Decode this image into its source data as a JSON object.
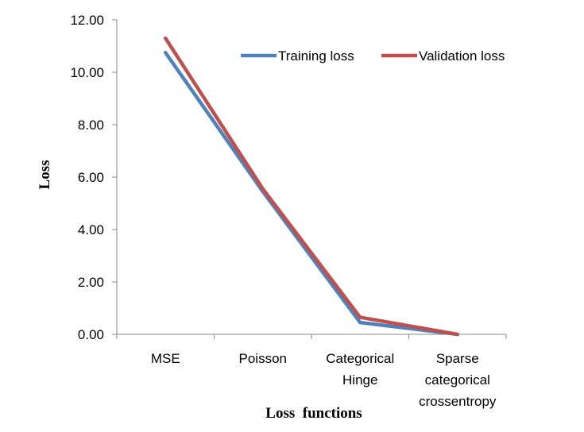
{
  "chart_data": {
    "type": "line",
    "title": "",
    "xlabel": "Loss  functions",
    "ylabel": "Loss",
    "categories": [
      [
        "MSE"
      ],
      [
        "Poisson"
      ],
      [
        "Categorical",
        "Hinge"
      ],
      [
        "Sparse",
        "categorical",
        "crossentropy"
      ]
    ],
    "ylim": [
      0,
      12
    ],
    "yticks": [
      "0.00",
      "2.00",
      "4.00",
      "6.00",
      "8.00",
      "10.00",
      "12.00"
    ],
    "grid": false,
    "legend_position": "top-right",
    "series": [
      {
        "name": "Training loss",
        "color": "#4F81BD",
        "values": [
          10.75,
          5.45,
          0.45,
          0.0
        ]
      },
      {
        "name": "Validation loss",
        "color": "#C0504D",
        "values": [
          11.3,
          5.55,
          0.65,
          0.0
        ]
      }
    ]
  }
}
